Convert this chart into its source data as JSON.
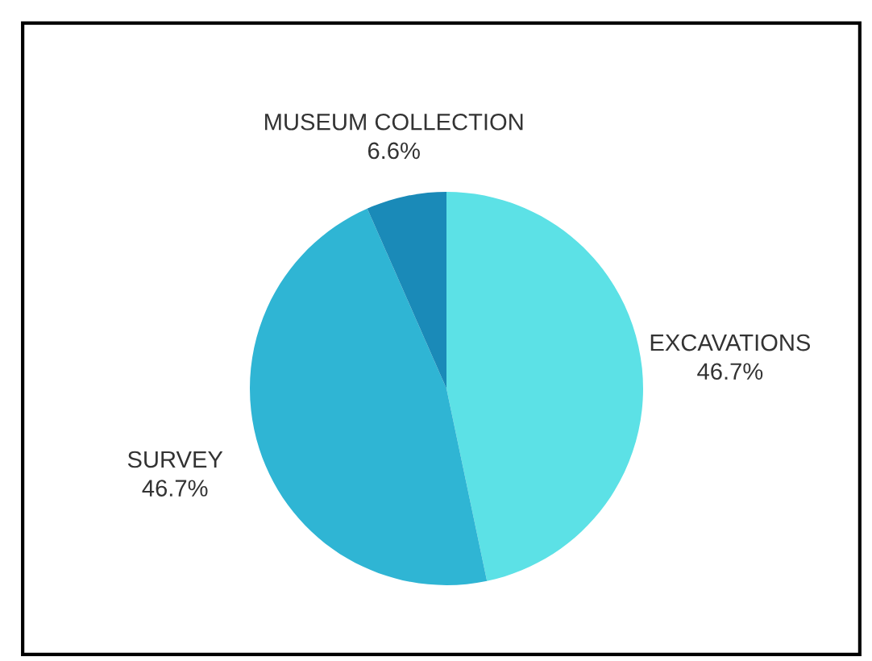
{
  "chart_data": {
    "type": "pie",
    "categories": [
      "EXCAVATIONS",
      "SURVEY",
      "MUSEUM COLLECTION"
    ],
    "values": [
      46.7,
      46.7,
      6.6
    ],
    "value_labels": [
      "46.7%",
      "46.7%",
      "6.6%"
    ],
    "colors": [
      "#5ce1e6",
      "#2fb5d4",
      "#1a8ab8"
    ],
    "legend": false
  }
}
